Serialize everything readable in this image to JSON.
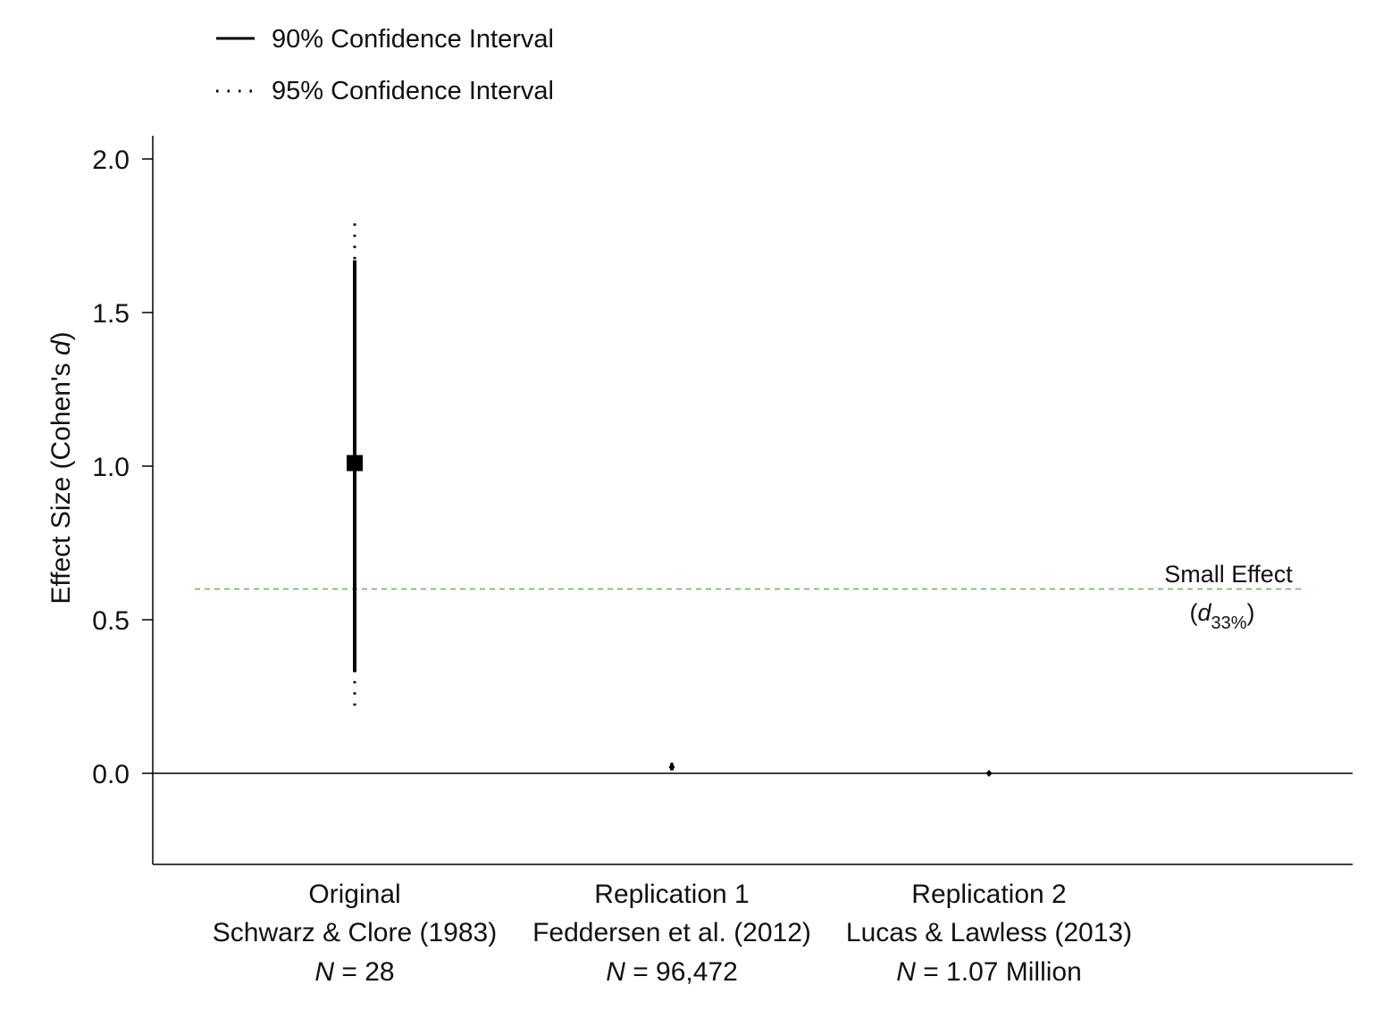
{
  "chart_data": {
    "type": "scatter",
    "ylabel_main": "Effect Size (Cohen's ",
    "ylabel_italic": "d",
    "ylabel_close": ")",
    "ylim": [
      -0.3,
      2.08
    ],
    "yticks": [
      0.0,
      0.5,
      1.0,
      1.5,
      2.0
    ],
    "ytick_labels": [
      "0.0",
      "0.5",
      "1.0",
      "1.5",
      "2.0"
    ],
    "legend": {
      "placement": "top-left",
      "items": [
        {
          "label": "90% Confidence Interval",
          "style": "solid"
        },
        {
          "label": "95% Confidence Interval",
          "style": "dotted"
        }
      ]
    },
    "reference_line": {
      "y": 0.6,
      "label_line1": "Small Effect",
      "label_open": "(",
      "label_italic": "d",
      "label_sub": "33%",
      "label_close": ")",
      "color": "#6db75d"
    },
    "studies": [
      {
        "label_line1": "Original",
        "label_line2": "Schwarz & Clore (1983)",
        "n_prefix": "N",
        "n_value": " = 28",
        "estimate": 1.01,
        "ci90": [
          0.33,
          1.67
        ],
        "ci95": [
          0.21,
          1.79
        ],
        "marker": "square-large"
      },
      {
        "label_line1": "Replication 1",
        "label_line2": "Feddersen et al. (2012)",
        "n_prefix": "N",
        "n_value": " = 96,472",
        "estimate": 0.02,
        "ci90": [
          0.01,
          0.03
        ],
        "ci95": [
          0.005,
          0.035
        ],
        "marker": "diamond-small"
      },
      {
        "label_line1": "Replication 2",
        "label_line2": "Lucas & Lawless (2013)",
        "n_prefix": "N",
        "n_value": " = 1.07 Million",
        "estimate": 0.0,
        "ci90": [
          -0.004,
          0.004
        ],
        "ci95": [
          -0.006,
          0.006
        ],
        "marker": "diamond-small"
      }
    ],
    "zero_line": true,
    "grid": false
  }
}
